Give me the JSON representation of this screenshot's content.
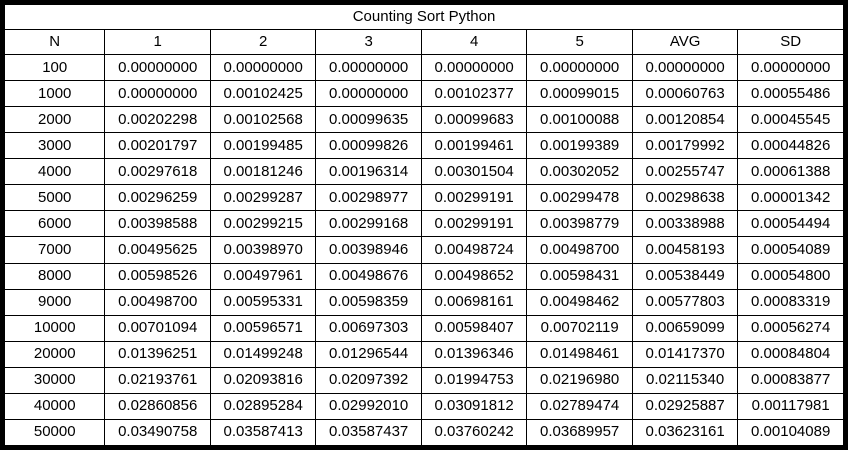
{
  "table": {
    "title": "Counting Sort Python",
    "headers": [
      "N",
      "1",
      "2",
      "3",
      "4",
      "5",
      "AVG",
      "SD"
    ],
    "rows": [
      [
        "100",
        "0.00000000",
        "0.00000000",
        "0.00000000",
        "0.00000000",
        "0.00000000",
        "0.00000000",
        "0.00000000"
      ],
      [
        "1000",
        "0.00000000",
        "0.00102425",
        "0.00000000",
        "0.00102377",
        "0.00099015",
        "0.00060763",
        "0.00055486"
      ],
      [
        "2000",
        "0.00202298",
        "0.00102568",
        "0.00099635",
        "0.00099683",
        "0.00100088",
        "0.00120854",
        "0.00045545"
      ],
      [
        "3000",
        "0.00201797",
        "0.00199485",
        "0.00099826",
        "0.00199461",
        "0.00199389",
        "0.00179992",
        "0.00044826"
      ],
      [
        "4000",
        "0.00297618",
        "0.00181246",
        "0.00196314",
        "0.00301504",
        "0.00302052",
        "0.00255747",
        "0.00061388"
      ],
      [
        "5000",
        "0.00296259",
        "0.00299287",
        "0.00298977",
        "0.00299191",
        "0.00299478",
        "0.00298638",
        "0.00001342"
      ],
      [
        "6000",
        "0.00398588",
        "0.00299215",
        "0.00299168",
        "0.00299191",
        "0.00398779",
        "0.00338988",
        "0.00054494"
      ],
      [
        "7000",
        "0.00495625",
        "0.00398970",
        "0.00398946",
        "0.00498724",
        "0.00498700",
        "0.00458193",
        "0.00054089"
      ],
      [
        "8000",
        "0.00598526",
        "0.00497961",
        "0.00498676",
        "0.00498652",
        "0.00598431",
        "0.00538449",
        "0.00054800"
      ],
      [
        "9000",
        "0.00498700",
        "0.00595331",
        "0.00598359",
        "0.00698161",
        "0.00498462",
        "0.00577803",
        "0.00083319"
      ],
      [
        "10000",
        "0.00701094",
        "0.00596571",
        "0.00697303",
        "0.00598407",
        "0.00702119",
        "0.00659099",
        "0.00056274"
      ],
      [
        "20000",
        "0.01396251",
        "0.01499248",
        "0.01296544",
        "0.01396346",
        "0.01498461",
        "0.01417370",
        "0.00084804"
      ],
      [
        "30000",
        "0.02193761",
        "0.02093816",
        "0.02097392",
        "0.01994753",
        "0.02196980",
        "0.02115340",
        "0.00083877"
      ],
      [
        "40000",
        "0.02860856",
        "0.02895284",
        "0.02992010",
        "0.03091812",
        "0.02789474",
        "0.02925887",
        "0.00117981"
      ],
      [
        "50000",
        "0.03490758",
        "0.03587413",
        "0.03587437",
        "0.03760242",
        "0.03689957",
        "0.03623161",
        "0.00104089"
      ]
    ]
  }
}
